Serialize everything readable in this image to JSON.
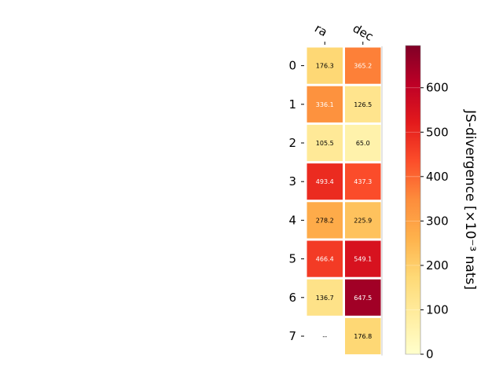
{
  "chart_data": {
    "type": "heatmap",
    "x_categories": [
      "ra",
      "dec"
    ],
    "y_categories": [
      "0",
      "1",
      "2",
      "3",
      "4",
      "5",
      "6",
      "7"
    ],
    "values": [
      [
        176.3,
        365.2
      ],
      [
        336.1,
        126.5
      ],
      [
        105.5,
        65.0
      ],
      [
        493.4,
        437.3
      ],
      [
        278.2,
        225.9
      ],
      [
        466.4,
        549.1
      ],
      [
        136.7,
        647.5
      ],
      [
        null,
        176.8
      ]
    ],
    "cell_labels": [
      [
        "176.3",
        "365.2"
      ],
      [
        "336.1",
        "126.5"
      ],
      [
        "105.5",
        "65.0"
      ],
      [
        "493.4",
        "437.3"
      ],
      [
        "278.2",
        "225.9"
      ],
      [
        "466.4",
        "549.1"
      ],
      [
        "136.7",
        "647.5"
      ],
      [
        "--",
        "176.8"
      ]
    ],
    "colorbar": {
      "label": "JS-divergence [×10⁻³ nats]",
      "ticks": [
        "0",
        "100",
        "200",
        "300",
        "400",
        "500",
        "600"
      ],
      "tick_values": [
        0,
        100,
        200,
        300,
        400,
        500,
        600
      ],
      "range": [
        0,
        695
      ],
      "colormap": "YlOrRd",
      "colors": [
        "#ffffcc",
        "#ffeda0",
        "#fed976",
        "#feb24c",
        "#fd8d3c",
        "#fc4e2a",
        "#e31a1c",
        "#bd0026",
        "#800026"
      ]
    },
    "grid": false,
    "legend": "none"
  }
}
